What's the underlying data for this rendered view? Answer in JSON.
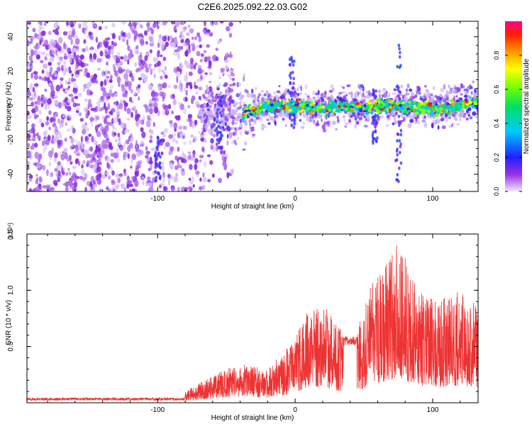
{
  "title": "C2E6.2025.092.22.03.G02",
  "chart_data": [
    {
      "type": "heatmap",
      "title": "C2E6.2025.092.22.03.G02",
      "xlabel": "Height of straight line (km)",
      "ylabel": "Frequency (Hz)",
      "xlim": [
        -195,
        133
      ],
      "ylim": [
        -50,
        49
      ],
      "x_ticks": [
        "-100",
        "0",
        "100"
      ],
      "y_ticks": [
        "-40",
        "-20",
        "0",
        "20",
        "40"
      ],
      "colorbar": {
        "label": "Normalized spectral amplitude",
        "range": [
          0.0,
          1.0
        ],
        "ticks": [
          "0.0",
          "0.2",
          "0.4",
          "0.6",
          "0.8"
        ]
      },
      "ridge_center_hz": [
        {
          "x": -35,
          "y": -4
        },
        {
          "x": -20,
          "y": 0
        },
        {
          "x": -5,
          "y": -1
        },
        {
          "x": 5,
          "y": 0
        },
        {
          "x": 20,
          "y": -2
        },
        {
          "x": 35,
          "y": 0
        },
        {
          "x": 50,
          "y": -1
        },
        {
          "x": 65,
          "y": 0
        },
        {
          "x": 90,
          "y": -1
        },
        {
          "x": 105,
          "y": -2
        },
        {
          "x": 120,
          "y": 0
        },
        {
          "x": 130,
          "y": 2
        }
      ]
    },
    {
      "type": "line",
      "xlabel": "Height of straight line (km)",
      "ylabel": "SNR (10 * v/v)",
      "y_multiplier": "(x10⁴)",
      "xlim": [
        -195,
        133
      ],
      "ylim": [
        0,
        1.5
      ],
      "x_ticks": [
        "-100",
        "0",
        "100"
      ],
      "y_ticks": [
        "0.5",
        "1.0",
        "1.5"
      ],
      "series": [
        {
          "name": "SNR",
          "color": "#ee3333",
          "envelope_x": [
            -195,
            -120,
            -80,
            -60,
            -40,
            -20,
            -5,
            5,
            15,
            25,
            35,
            45,
            55,
            65,
            75,
            85,
            95,
            105,
            115,
            125,
            133
          ],
          "envelope_y": [
            0.03,
            0.04,
            0.1,
            0.25,
            0.35,
            0.3,
            0.5,
            0.75,
            0.9,
            0.85,
            0.6,
            0.65,
            1.05,
            1.2,
            1.45,
            1.15,
            0.95,
            0.9,
            1.0,
            0.95,
            0.85
          ]
        }
      ]
    }
  ]
}
